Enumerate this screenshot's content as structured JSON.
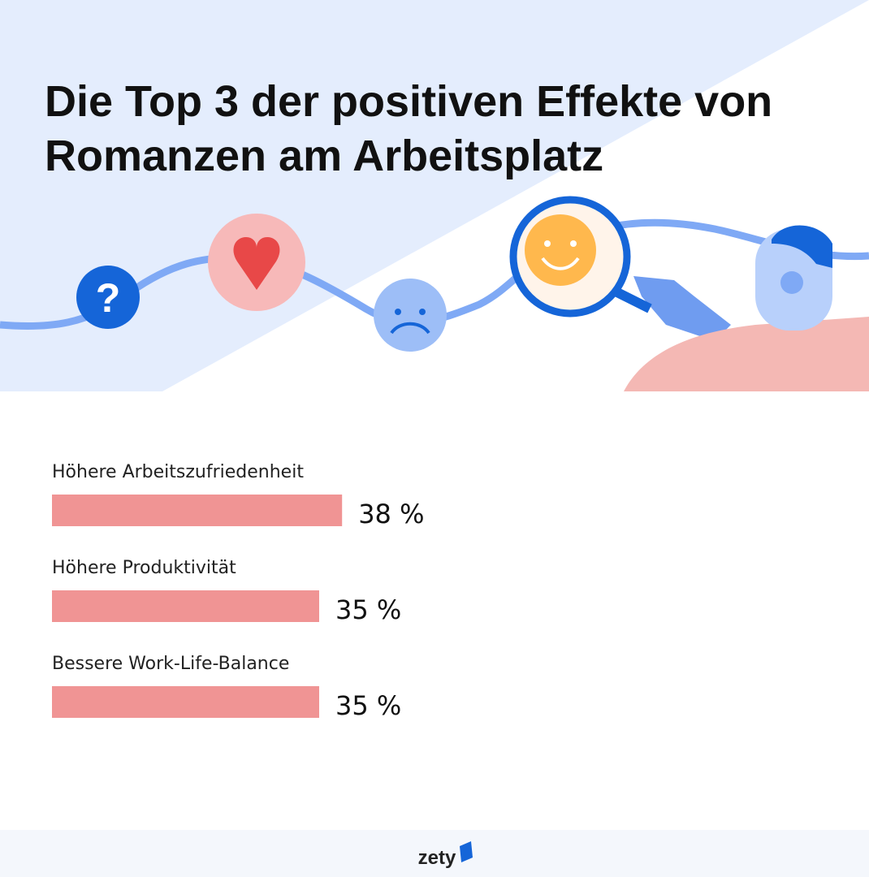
{
  "chart_data": {
    "type": "bar",
    "orientation": "horizontal",
    "title": "Die Top 3 der positiven Effekte von Romanzen am Arbeitsplatz",
    "categories": [
      "Höhere Arbeitszufriedenheit",
      "Höhere Produktivität",
      "Bessere Work-Life-Balance"
    ],
    "values": [
      38,
      35,
      35
    ],
    "value_labels": [
      "38 %",
      "35 %",
      "35 %"
    ],
    "color": "#f09494",
    "brand": "zety"
  }
}
